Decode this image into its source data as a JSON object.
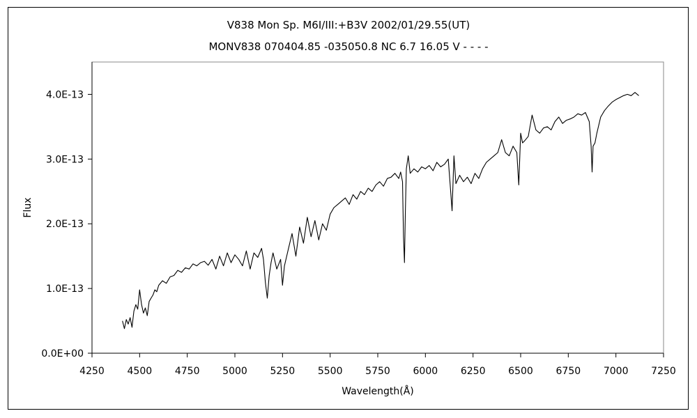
{
  "chart_data": {
    "type": "line",
    "title": "V838 Mon    Sp. M6I/III:+B3V    2002/01/29.55(UT)",
    "subtitle": "MONV838 070404.85 -035050.8 NC 6.7 16.05 V - - - -",
    "xlabel": "Wavelength(Å)",
    "ylabel": "Flux",
    "xlim": [
      4250,
      7250
    ],
    "ylim": [
      0,
      4.5e-13
    ],
    "xticks": [
      4250,
      4500,
      4750,
      5000,
      5250,
      5500,
      5750,
      6000,
      6250,
      6500,
      6750,
      7000,
      7250
    ],
    "xtick_labels": [
      "4250",
      "4500",
      "4750",
      "5000",
      "5250",
      "5500",
      "5750",
      "6000",
      "6250",
      "6500",
      "6750",
      "7000",
      "7250"
    ],
    "yticks": [
      0,
      1e-13,
      2e-13,
      3e-13,
      4e-13
    ],
    "ytick_labels": [
      "0.0E+00",
      "1.0E-13",
      "2.0E-13",
      "3.0E-13",
      "4.0E-13"
    ],
    "grid": false,
    "legend": "none",
    "line_color": "#000000",
    "series": [
      {
        "x": [
          4410,
          4420,
          4430,
          4440,
          4450,
          4460,
          4470,
          4480,
          4490,
          4500,
          4510,
          4520,
          4530,
          4540,
          4550,
          4560,
          4570,
          4580,
          4590,
          4600,
          4620,
          4640,
          4660,
          4680,
          4700,
          4720,
          4740,
          4760,
          4780,
          4800,
          4820,
          4840,
          4860,
          4880,
          4900,
          4920,
          4940,
          4960,
          4980,
          5000,
          5020,
          5040,
          5060,
          5080,
          5100,
          5120,
          5140,
          5150,
          5160,
          5170,
          5180,
          5190,
          5200,
          5220,
          5240,
          5250,
          5260,
          5280,
          5300,
          5320,
          5340,
          5360,
          5380,
          5400,
          5420,
          5440,
          5460,
          5480,
          5500,
          5520,
          5540,
          5560,
          5580,
          5600,
          5620,
          5640,
          5660,
          5680,
          5700,
          5720,
          5740,
          5760,
          5780,
          5800,
          5820,
          5840,
          5860,
          5870,
          5880,
          5885,
          5890,
          5895,
          5900,
          5910,
          5920,
          5940,
          5960,
          5980,
          6000,
          6020,
          6040,
          6060,
          6080,
          6100,
          6120,
          6130,
          6140,
          6150,
          6160,
          6180,
          6200,
          6220,
          6240,
          6260,
          6280,
          6300,
          6320,
          6340,
          6360,
          6380,
          6400,
          6420,
          6440,
          6460,
          6480,
          6490,
          6500,
          6510,
          6520,
          6540,
          6560,
          6580,
          6600,
          6620,
          6640,
          6660,
          6680,
          6700,
          6720,
          6740,
          6760,
          6780,
          6800,
          6820,
          6840,
          6860,
          6870,
          6875,
          6880,
          6890,
          6900,
          6920,
          6940,
          6960,
          6980,
          7000,
          7020,
          7040,
          7060,
          7080,
          7100,
          7120
        ],
        "y": [
          5e-14,
          3.8e-14,
          5.2e-14,
          4.5e-14,
          5.5e-14,
          4e-14,
          6.5e-14,
          7.5e-14,
          6.8e-14,
          9.8e-14,
          7.5e-14,
          6.2e-14,
          7e-14,
          5.8e-14,
          8e-14,
          8.5e-14,
          9e-14,
          9.8e-14,
          9.5e-14,
          1.05e-13,
          1.12e-13,
          1.08e-13,
          1.18e-13,
          1.2e-13,
          1.28e-13,
          1.25e-13,
          1.32e-13,
          1.3e-13,
          1.38e-13,
          1.35e-13,
          1.4e-13,
          1.42e-13,
          1.36e-13,
          1.45e-13,
          1.3e-13,
          1.5e-13,
          1.35e-13,
          1.55e-13,
          1.4e-13,
          1.52e-13,
          1.45e-13,
          1.35e-13,
          1.58e-13,
          1.3e-13,
          1.55e-13,
          1.48e-13,
          1.62e-13,
          1.45e-13,
          1.1e-13,
          8.5e-14,
          1.2e-13,
          1.4e-13,
          1.55e-13,
          1.3e-13,
          1.45e-13,
          1.05e-13,
          1.35e-13,
          1.6e-13,
          1.85e-13,
          1.5e-13,
          1.95e-13,
          1.7e-13,
          2.1e-13,
          1.8e-13,
          2.05e-13,
          1.75e-13,
          2e-13,
          1.9e-13,
          2.15e-13,
          2.25e-13,
          2.3e-13,
          2.35e-13,
          2.4e-13,
          2.3e-13,
          2.45e-13,
          2.38e-13,
          2.5e-13,
          2.45e-13,
          2.55e-13,
          2.5e-13,
          2.6e-13,
          2.65e-13,
          2.58e-13,
          2.7e-13,
          2.72e-13,
          2.78e-13,
          2.7e-13,
          2.8e-13,
          2.65e-13,
          1.8e-13,
          1.4e-13,
          2.2e-13,
          2.85e-13,
          3.05e-13,
          2.78e-13,
          2.85e-13,
          2.8e-13,
          2.88e-13,
          2.85e-13,
          2.9e-13,
          2.82e-13,
          2.95e-13,
          2.88e-13,
          2.92e-13,
          3e-13,
          2.6e-13,
          2.2e-13,
          3.05e-13,
          2.62e-13,
          2.75e-13,
          2.65e-13,
          2.72e-13,
          2.62e-13,
          2.78e-13,
          2.7e-13,
          2.85e-13,
          2.95e-13,
          3e-13,
          3.05e-13,
          3.1e-13,
          3.3e-13,
          3.1e-13,
          3.05e-13,
          3.2e-13,
          3.1e-13,
          2.6e-13,
          3.4e-13,
          3.25e-13,
          3.28e-13,
          3.35e-13,
          3.68e-13,
          3.45e-13,
          3.4e-13,
          3.48e-13,
          3.5e-13,
          3.45e-13,
          3.58e-13,
          3.65e-13,
          3.55e-13,
          3.6e-13,
          3.62e-13,
          3.65e-13,
          3.7e-13,
          3.68e-13,
          3.72e-13,
          3.58e-13,
          3.2e-13,
          2.8e-13,
          3.2e-13,
          3.25e-13,
          3.4e-13,
          3.65e-13,
          3.75e-13,
          3.82e-13,
          3.88e-13,
          3.92e-13,
          3.95e-13,
          3.98e-13,
          4e-13,
          3.98e-13,
          4.03e-13,
          3.98e-13
        ]
      }
    ]
  }
}
